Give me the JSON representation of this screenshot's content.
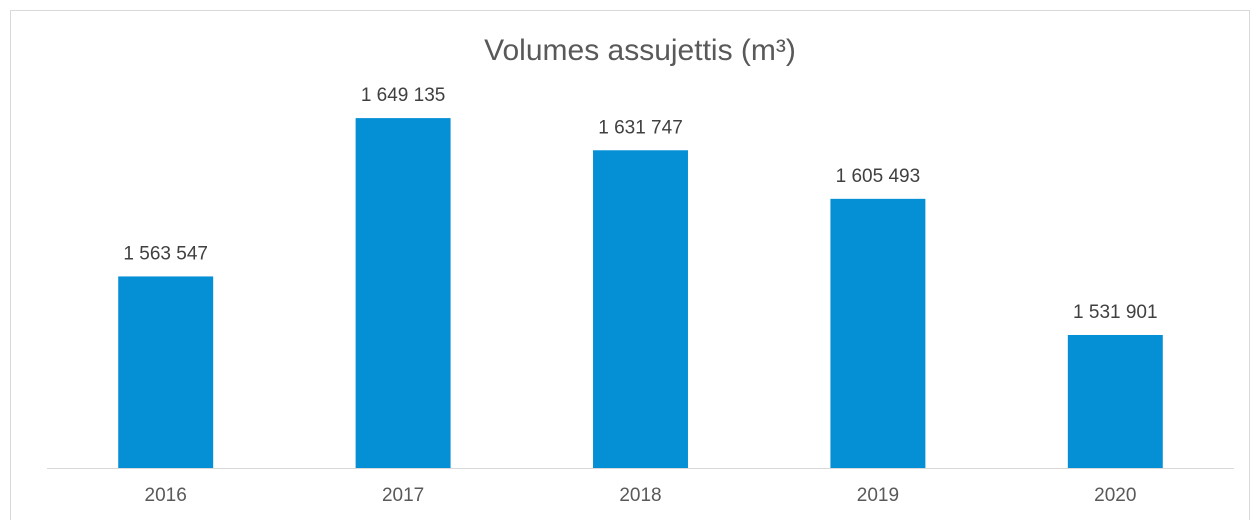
{
  "chart_data": {
    "type": "bar",
    "title": "Volumes assujettis (m³)",
    "categories": [
      "2016",
      "2017",
      "2018",
      "2019",
      "2020"
    ],
    "values": [
      1563547,
      1649135,
      1631747,
      1605493,
      1531901
    ],
    "value_labels": [
      "1 563 547",
      "1 649 135",
      "1 631 747",
      "1 605 493",
      "1 531 901"
    ],
    "color": "#0590d6",
    "ylim": [
      1460000,
      1680000
    ]
  }
}
